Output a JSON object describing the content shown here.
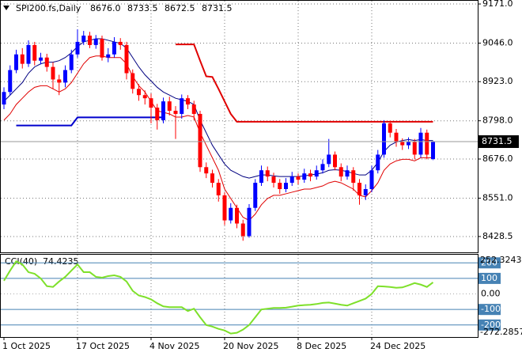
{
  "chart_data": [
    {
      "type": "candlestick",
      "title": "SPI200.fs,Daily",
      "title_values": [
        "8676.0",
        "8733.5",
        "8672.5",
        "8731.5"
      ],
      "x": [
        "1 Oct 2025",
        null,
        null,
        null,
        null,
        null,
        null,
        null,
        null,
        null,
        null,
        null,
        "17 Oct 2025",
        null,
        null,
        null,
        null,
        null,
        null,
        null,
        null,
        null,
        null,
        null,
        "4 Nov 2025",
        null,
        null,
        null,
        null,
        null,
        null,
        null,
        null,
        null,
        null,
        null,
        "20 Nov 2025",
        null,
        null,
        null,
        null,
        null,
        null,
        null,
        null,
        null,
        null,
        null,
        "8 Dec 2025",
        null,
        null,
        null,
        null,
        null,
        null,
        null,
        null,
        null,
        null,
        null,
        "24 Dec 2025",
        null,
        null,
        null,
        null,
        null,
        null,
        null,
        null,
        null,
        null
      ],
      "open": [
        8850,
        8890,
        8960,
        9010,
        8980,
        9040,
        8990,
        9000,
        8970,
        8930,
        8920,
        8960,
        9010,
        9050,
        9070,
        9040,
        9060,
        9000,
        9010,
        9050,
        9040,
        8950,
        8900,
        8880,
        8870,
        8840,
        8800,
        8860,
        8830,
        8820,
        8870,
        8850,
        8820,
        8650,
        8630,
        8600,
        8560,
        8480,
        8520,
        8470,
        8430,
        8520,
        8600,
        8640,
        8620,
        8600,
        8580,
        8600,
        8620,
        8610,
        8630,
        8620,
        8640,
        8660,
        8690,
        8650,
        8620,
        8640,
        8600,
        8560,
        8580,
        8640,
        8690,
        8790,
        8760,
        8730,
        8720,
        8730,
        8690,
        8760,
        8676
      ],
      "high": [
        8905,
        8975,
        9025,
        9030,
        9055,
        9050,
        9015,
        9012,
        8985,
        8945,
        8975,
        9025,
        9090,
        9085,
        9082,
        9072,
        9070,
        9030,
        9065,
        9062,
        9050,
        8962,
        8915,
        8895,
        8885,
        8852,
        8872,
        8875,
        8845,
        8882,
        8880,
        8862,
        8830,
        8665,
        8642,
        8612,
        8570,
        8535,
        8530,
        8482,
        8532,
        8612,
        8655,
        8652,
        8632,
        8612,
        8615,
        8635,
        8630,
        8645,
        8642,
        8655,
        8675,
        8740,
        8700,
        8662,
        8655,
        8650,
        8612,
        8595,
        8655,
        8705,
        8800,
        8798,
        8772,
        8742,
        8745,
        8740,
        8775,
        8770,
        8733.5
      ],
      "low": [
        8835,
        8880,
        8950,
        8965,
        8970,
        8975,
        8978,
        8955,
        8900,
        8880,
        8905,
        8950,
        9000,
        9040,
        9030,
        9028,
        8990,
        8985,
        9000,
        9025,
        8930,
        8885,
        8862,
        8850,
        8790,
        8770,
        8790,
        8815,
        8740,
        8805,
        8835,
        8800,
        8635,
        8615,
        8585,
        8540,
        8465,
        8470,
        8455,
        8415,
        8425,
        8510,
        8590,
        8605,
        8585,
        8565,
        8570,
        8590,
        8595,
        8600,
        8605,
        8610,
        8630,
        8650,
        8640,
        8605,
        8610,
        8575,
        8530,
        8545,
        8570,
        8630,
        8680,
        8745,
        8715,
        8705,
        8708,
        8675,
        8680,
        8675,
        8672.5
      ],
      "close": [
        8890,
        8960,
        9010,
        8980,
        9040,
        8990,
        9000,
        8970,
        8930,
        8920,
        8960,
        9010,
        9050,
        9070,
        9040,
        9060,
        9000,
        9010,
        9050,
        9040,
        8950,
        8900,
        8880,
        8870,
        8840,
        8800,
        8860,
        8830,
        8820,
        8870,
        8850,
        8820,
        8650,
        8630,
        8600,
        8560,
        8480,
        8520,
        8470,
        8430,
        8520,
        8600,
        8640,
        8620,
        8600,
        8580,
        8600,
        8620,
        8610,
        8630,
        8620,
        8640,
        8660,
        8690,
        8650,
        8620,
        8640,
        8600,
        8560,
        8580,
        8640,
        8690,
        8790,
        8760,
        8730,
        8720,
        8730,
        8690,
        8760,
        8690,
        8731.5
      ],
      "up_color": "#0000ff",
      "down_color": "#ff0000",
      "overlays": [
        {
          "color": "#000080",
          "values": [
            8860,
            8880,
            8900,
            8920,
            8950,
            8970,
            8980,
            8985,
            8985,
            8990,
            9000,
            9015,
            9035,
            9050,
            9055,
            9060,
            9060,
            9055,
            9050,
            9045,
            9030,
            9000,
            8970,
            8945,
            8925,
            8905,
            8890,
            8880,
            8870,
            8865,
            8860,
            8850,
            8800,
            8760,
            8720,
            8690,
            8660,
            8640,
            8630,
            8620,
            8615,
            8620,
            8625,
            8625,
            8622,
            8620,
            8620,
            8620,
            8620,
            8622,
            8625,
            8628,
            8632,
            8640,
            8642,
            8640,
            8636,
            8630,
            8625,
            8625,
            8640,
            8665,
            8700,
            8720,
            8730,
            8735,
            8738,
            8735,
            8738,
            8735,
            8735
          ]
        },
        {
          "color": "#e00000",
          "values": [
            8800,
            8820,
            8850,
            8870,
            8890,
            8905,
            8910,
            8910,
            8900,
            8890,
            8900,
            8920,
            8950,
            8980,
            9000,
            9005,
            9005,
            9000,
            9000,
            9000,
            8980,
            8940,
            8910,
            8890,
            8860,
            8830,
            8825,
            8820,
            8810,
            8810,
            8815,
            8810,
            8760,
            8720,
            8680,
            8640,
            8580,
            8550,
            8520,
            8490,
            8480,
            8500,
            8530,
            8550,
            8560,
            8560,
            8565,
            8570,
            8575,
            8580,
            8580,
            8585,
            8590,
            8600,
            8605,
            8600,
            8590,
            8580,
            8560,
            8555,
            8575,
            8600,
            8640,
            8660,
            8670,
            8675,
            8675,
            8670,
            8680,
            8680,
            8680
          ]
        }
      ],
      "stops": [
        {
          "color": "#0000cd",
          "values": [
            null,
            null,
            8783,
            8783,
            8783,
            8783,
            8783,
            8783,
            8783,
            8783,
            8783,
            8783,
            8809,
            8809,
            8809,
            8809,
            8809,
            8809,
            8809,
            8809,
            8809,
            8809,
            8809,
            8809,
            8809,
            8809,
            8809,
            null,
            null,
            null,
            null,
            null,
            null,
            null,
            null,
            null,
            null,
            null,
            null,
            null,
            null,
            null,
            null,
            null,
            null,
            null,
            null,
            null,
            null,
            null,
            null,
            null,
            null,
            null,
            null,
            null,
            null,
            null,
            null,
            null,
            null,
            null,
            null,
            null,
            null,
            null,
            null,
            null,
            null,
            null,
            null
          ]
        },
        {
          "color": "#e00000",
          "values": [
            null,
            null,
            null,
            null,
            null,
            null,
            null,
            null,
            null,
            null,
            null,
            null,
            null,
            null,
            null,
            null,
            null,
            null,
            null,
            null,
            null,
            null,
            null,
            null,
            null,
            null,
            null,
            null,
            9042,
            9042,
            9042,
            9042,
            8990,
            8940,
            8938,
            8900,
            8860,
            8820,
            8795,
            8795,
            8795,
            8795,
            8795,
            8795,
            8795,
            8795,
            8795,
            8795,
            8795,
            8795,
            8795,
            8795,
            8795,
            8795,
            8795,
            8795,
            8795,
            8795,
            8795,
            8795,
            8795,
            8795,
            8795,
            8795,
            8795,
            8795,
            8795,
            8795,
            8795,
            8795,
            8795
          ]
        }
      ],
      "ylim": [
        8377.9,
        9183.7
      ],
      "yticks": [
        {
          "value": 9171,
          "label": "9171.0"
        },
        {
          "value": 9046,
          "label": "9046.0"
        },
        {
          "value": 8923,
          "label": "8923.0"
        },
        {
          "value": 8798,
          "label": "8798.0"
        },
        {
          "value": 8676,
          "label": "8676.0"
        },
        {
          "value": 8551,
          "label": "8551.0"
        },
        8428.5
      ],
      "grid": true
    },
    {
      "type": "line",
      "title": "CCI(40)",
      "series": [
        {
          "color": "#7ee02a",
          "values": [
            85,
            150,
            210,
            190,
            140,
            130,
            100,
            50,
            45,
            80,
            110,
            150,
            190,
            140,
            140,
            110,
            105,
            115,
            120,
            110,
            80,
            20,
            -10,
            -20,
            -35,
            -60,
            -80,
            -85,
            -85,
            -85,
            -110,
            -95,
            -150,
            -200,
            -210,
            -225,
            -235,
            -255,
            -250,
            -230,
            -200,
            -150,
            -100,
            -95,
            -90,
            -90,
            -88,
            -82,
            -75,
            -72,
            -70,
            -65,
            -58,
            -55,
            -62,
            -70,
            -75,
            -60,
            -45,
            -30,
            0,
            50,
            48,
            45,
            40,
            42,
            55,
            70,
            60,
            45,
            74.4235
          ]
        }
      ],
      "ylim": [
        -272.2857,
        252.3243
      ],
      "yticks": [
        200,
        100,
        {
          "value": 0,
          "label": "0.00"
        },
        -100,
        -200
      ],
      "level_color": "#4682b4"
    }
  ]
}
